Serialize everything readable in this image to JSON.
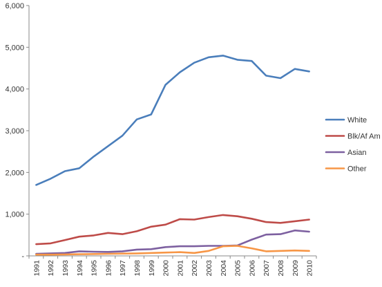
{
  "chart_data": {
    "type": "line",
    "x": [
      "1991",
      "1992",
      "1993",
      "1994",
      "1995",
      "1996",
      "1997",
      "1998",
      "1999",
      "2000",
      "2001",
      "2002",
      "2003",
      "2004",
      "2005",
      "2006",
      "2007",
      "2008",
      "2009",
      "2010"
    ],
    "ylim": [
      0,
      6000
    ],
    "y_ticks": [
      "-",
      "1,000",
      "2,000",
      "3,000",
      "4,000",
      "5,000",
      "6,000"
    ],
    "grid": false,
    "legend_position": "right",
    "series": [
      {
        "name": "White",
        "color": "#4A7EBB",
        "values": [
          1700,
          1850,
          2030,
          2100,
          2380,
          2630,
          2880,
          3270,
          3390,
          4100,
          4400,
          4630,
          4760,
          4800,
          4700,
          4670,
          4320,
          4260,
          4480,
          4420
        ]
      },
      {
        "name": "Blk/Af Am",
        "color": "#BE4B48",
        "values": [
          280,
          300,
          380,
          460,
          490,
          550,
          520,
          590,
          700,
          750,
          880,
          870,
          930,
          980,
          950,
          890,
          810,
          790,
          830,
          870
        ]
      },
      {
        "name": "Asian",
        "color": "#7D60A0",
        "values": [
          50,
          60,
          70,
          110,
          100,
          95,
          110,
          150,
          160,
          210,
          230,
          230,
          240,
          240,
          250,
          390,
          510,
          520,
          610,
          580
        ]
      },
      {
        "name": "Other",
        "color": "#F79646",
        "values": [
          30,
          30,
          35,
          40,
          45,
          50,
          55,
          60,
          70,
          80,
          90,
          70,
          120,
          230,
          240,
          180,
          110,
          120,
          130,
          120
        ]
      }
    ]
  }
}
